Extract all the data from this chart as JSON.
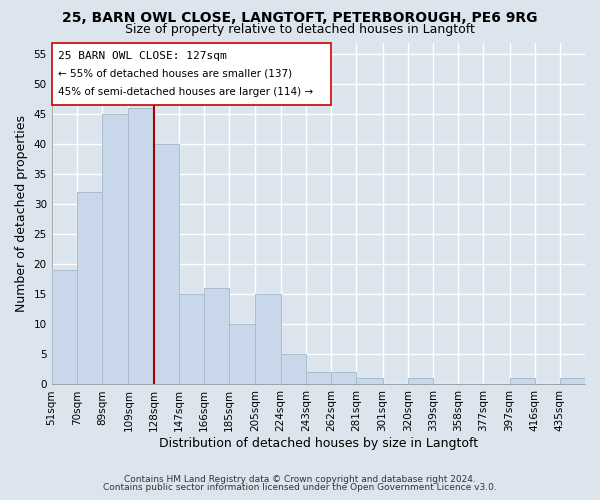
{
  "title": "25, BARN OWL CLOSE, LANGTOFT, PETERBOROUGH, PE6 9RG",
  "subtitle": "Size of property relative to detached houses in Langtoft",
  "xlabel": "Distribution of detached houses by size in Langtoft",
  "ylabel": "Number of detached properties",
  "bar_color": "#c8d8ea",
  "bar_edgecolor": "#a8becd",
  "vline_x": 128,
  "vline_color": "#aa0000",
  "categories": [
    "51sqm",
    "70sqm",
    "89sqm",
    "109sqm",
    "128sqm",
    "147sqm",
    "166sqm",
    "185sqm",
    "205sqm",
    "224sqm",
    "243sqm",
    "262sqm",
    "281sqm",
    "301sqm",
    "320sqm",
    "339sqm",
    "358sqm",
    "377sqm",
    "397sqm",
    "416sqm",
    "435sqm"
  ],
  "bin_edges": [
    51,
    70,
    89,
    109,
    128,
    147,
    166,
    185,
    205,
    224,
    243,
    262,
    281,
    301,
    320,
    339,
    358,
    377,
    397,
    416,
    435,
    454
  ],
  "values": [
    19,
    32,
    45,
    46,
    40,
    15,
    16,
    10,
    15,
    5,
    2,
    2,
    1,
    0,
    1,
    0,
    0,
    0,
    1,
    0,
    1
  ],
  "ylim": [
    0,
    57
  ],
  "yticks": [
    0,
    5,
    10,
    15,
    20,
    25,
    30,
    35,
    40,
    45,
    50,
    55
  ],
  "annotation_text_line1": "25 BARN OWL CLOSE: 127sqm",
  "annotation_text_line2": "← 55% of detached houses are smaller (137)",
  "annotation_text_line3": "45% of semi-detached houses are larger (114) →",
  "footer_line1": "Contains HM Land Registry data © Crown copyright and database right 2024.",
  "footer_line2": "Contains public sector information licensed under the Open Government Licence v3.0.",
  "background_color": "#dce4ee",
  "plot_background": "#dce4ee",
  "grid_color": "#ffffff",
  "title_fontsize": 10,
  "subtitle_fontsize": 9,
  "axis_label_fontsize": 9,
  "tick_fontsize": 7.5,
  "footer_fontsize": 6.5
}
